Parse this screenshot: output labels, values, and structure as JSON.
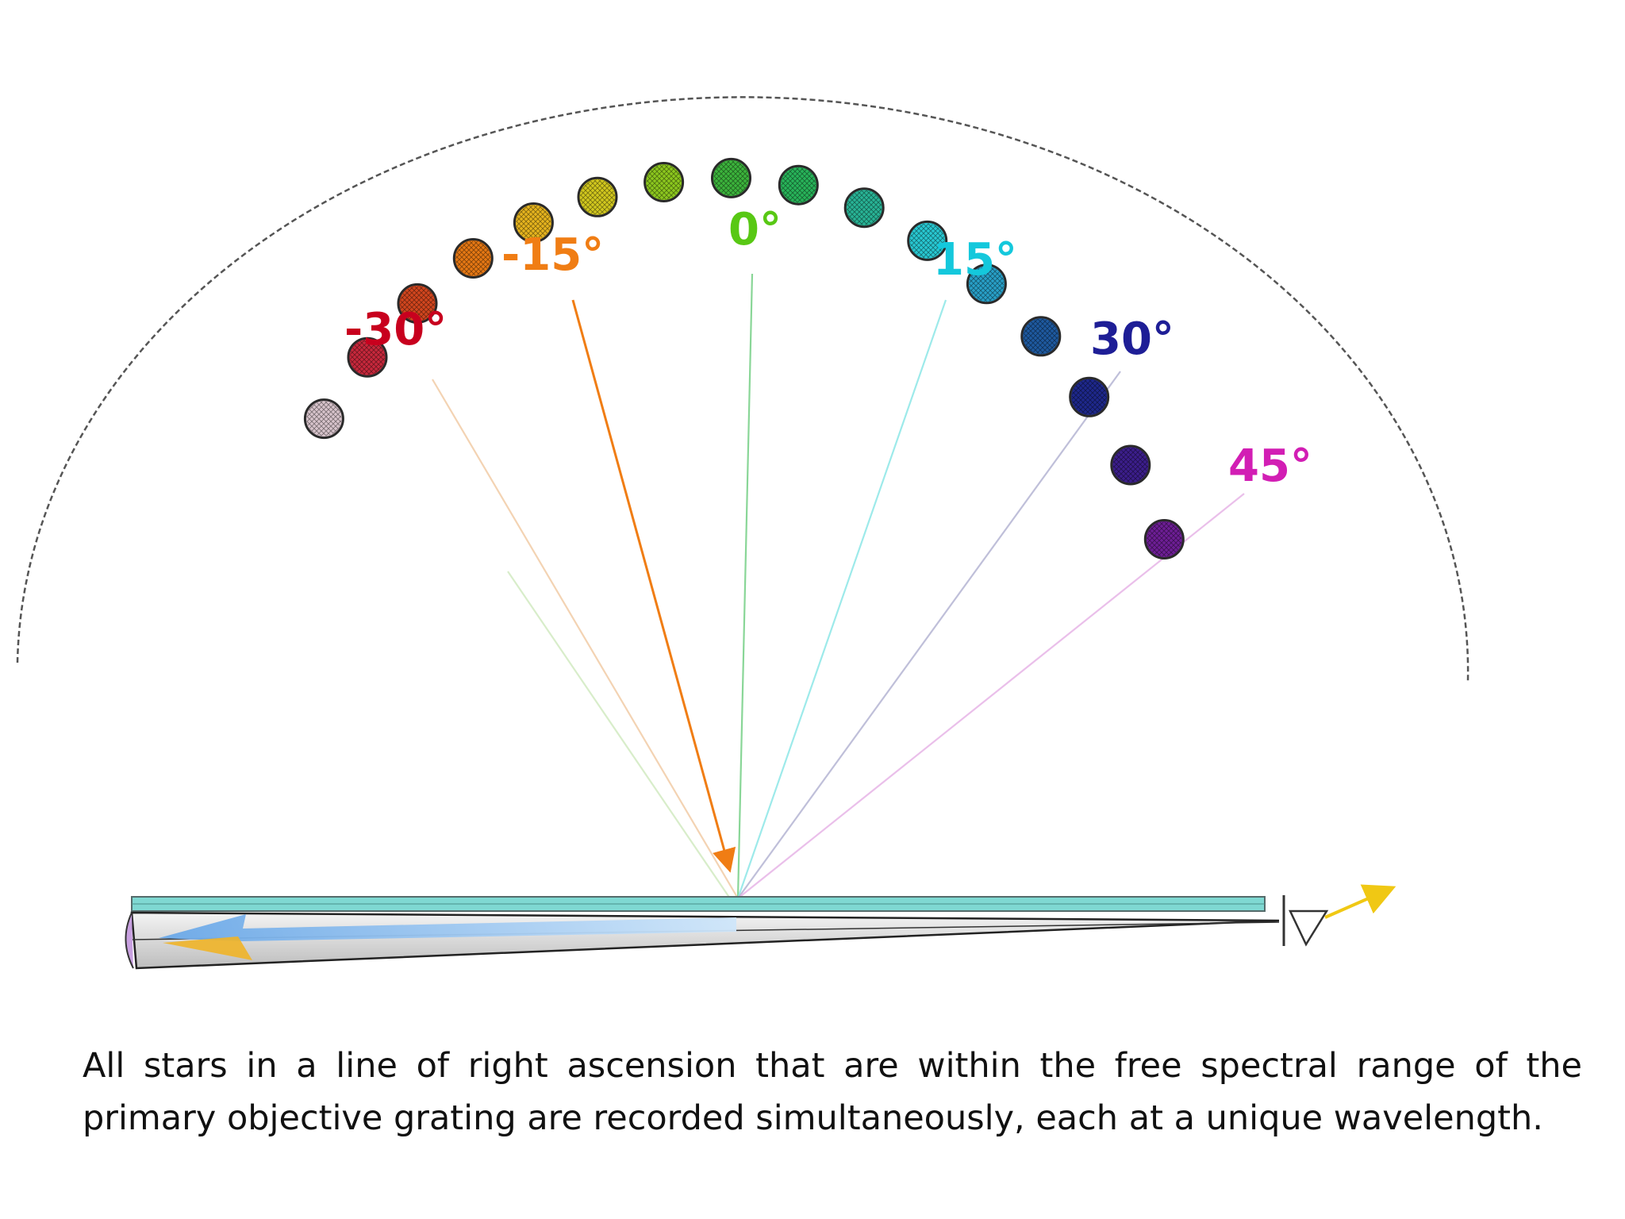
{
  "angle_labels": [
    {
      "text": "-30°",
      "color": "#c8001e"
    },
    {
      "text": "-15°",
      "color": "#f07d14"
    },
    {
      "text": "0°",
      "color": "#58c814"
    },
    {
      "text": "15°",
      "color": "#14c8dc"
    },
    {
      "text": "30°",
      "color": "#1e1e96"
    },
    {
      "text": "45°",
      "color": "#d21eb4"
    }
  ],
  "stars": [
    {
      "color": "#d8c4cc"
    },
    {
      "color": "#c8283c"
    },
    {
      "color": "#d2461e"
    },
    {
      "color": "#e67814"
    },
    {
      "color": "#e6b41e"
    },
    {
      "color": "#d2c81e"
    },
    {
      "color": "#8cc81e"
    },
    {
      "color": "#3cb43c"
    },
    {
      "color": "#28b45a"
    },
    {
      "color": "#28b496"
    },
    {
      "color": "#28c8d2"
    },
    {
      "color": "#28a0c8"
    },
    {
      "color": "#1e5aa0"
    },
    {
      "color": "#1e288c"
    },
    {
      "color": "#3c1e8c"
    },
    {
      "color": "#6e1e96"
    }
  ],
  "caption": "All stars in a line of right ascension that are within the free spectral range of the primary objective grating are recorded simultaneously, each at a unique wavelength."
}
